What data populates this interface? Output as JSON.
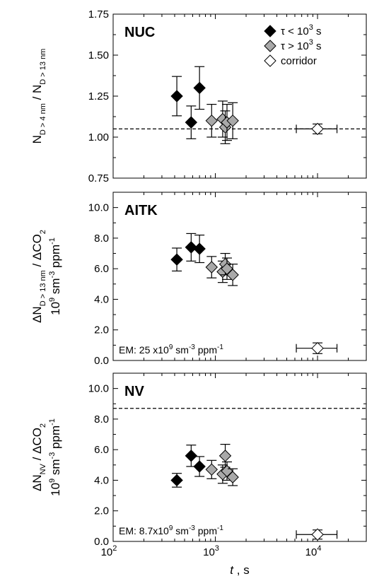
{
  "chart_data": [
    {
      "type": "scatter",
      "panel_label": "NUC",
      "ylabel": {
        "main1": "N",
        "sub1": "D > 4 nm",
        "main2": " / N",
        "sub2": "D > 13 nm"
      },
      "ylim": [
        0.75,
        1.75
      ],
      "yticks": [
        "0.75",
        "1.00",
        "1.25",
        "1.50",
        "1.75"
      ],
      "ytick_values": [
        0.75,
        1.0,
        1.25,
        1.5,
        1.75
      ],
      "reference_line": 1.05,
      "legend": {
        "position": "top-right",
        "entries": [
          {
            "key": "short",
            "label_prefix": "τ < 10",
            "label_sup": "3",
            "label_suffix": " s",
            "color": "#000000"
          },
          {
            "key": "long",
            "label_prefix": "τ > 10",
            "label_sup": "3",
            "label_suffix": " s",
            "color": "#a9a9a9"
          },
          {
            "key": "corridor",
            "label": "corridor",
            "color": "#ffffff"
          }
        ]
      },
      "series": [
        {
          "key": "short",
          "points": [
            {
              "x": 420,
              "y": 1.25,
              "yerr": 0.12
            },
            {
              "x": 580,
              "y": 1.09,
              "yerr": 0.1
            },
            {
              "x": 700,
              "y": 1.3,
              "yerr": 0.13
            }
          ]
        },
        {
          "key": "long",
          "points": [
            {
              "x": 920,
              "y": 1.1,
              "yerr": 0.1
            },
            {
              "x": 1180,
              "y": 1.11,
              "yerr": 0.11
            },
            {
              "x": 1250,
              "y": 1.06,
              "yerr": 0.1
            },
            {
              "x": 1300,
              "y": 1.09,
              "yerr": 0.11
            },
            {
              "x": 1480,
              "y": 1.1,
              "yerr": 0.11
            }
          ]
        },
        {
          "key": "corridor",
          "points": [
            {
              "x": 10000,
              "y": 1.05,
              "yerr": 0.03,
              "xerr_low": 6200,
              "xerr_high": 15500
            }
          ]
        }
      ]
    },
    {
      "type": "scatter",
      "panel_label": "AITK",
      "ylabel": {
        "line1_main1": "ΔN",
        "line1_sub1": "D > 13 nm",
        "line1_main2": " / ΔCO",
        "line1_sub2": "2",
        "line2_main1": "10",
        "line2_sup1": "9",
        "line2_main2": " sm",
        "line2_sup2": "-3",
        "line2_main3": " ppm",
        "line2_sup3": "-1"
      },
      "ylim": [
        0.0,
        11.0
      ],
      "yticks": [
        "0.0",
        "2.0",
        "4.0",
        "6.0",
        "8.0",
        "10.0"
      ],
      "ytick_values": [
        0,
        2,
        4,
        6,
        8,
        10
      ],
      "annotation": {
        "prefix": "EM: 25 x10",
        "sup1": "9",
        "mid": " sm",
        "sup2": "-3",
        "mid2": " ppm",
        "sup3": "-1"
      },
      "series": [
        {
          "key": "short",
          "points": [
            {
              "x": 420,
              "y": 6.6,
              "yerr": 0.75
            },
            {
              "x": 580,
              "y": 7.4,
              "yerr": 0.9
            },
            {
              "x": 700,
              "y": 7.3,
              "yerr": 0.9
            }
          ]
        },
        {
          "key": "long",
          "points": [
            {
              "x": 920,
              "y": 6.1,
              "yerr": 0.7
            },
            {
              "x": 1180,
              "y": 5.8,
              "yerr": 0.7
            },
            {
              "x": 1250,
              "y": 6.3,
              "yerr": 0.7
            },
            {
              "x": 1300,
              "y": 6.0,
              "yerr": 0.7
            },
            {
              "x": 1480,
              "y": 5.6,
              "yerr": 0.7
            }
          ]
        },
        {
          "key": "corridor",
          "points": [
            {
              "x": 10000,
              "y": 0.8,
              "yerr": 0.35,
              "xerr_low": 6200,
              "xerr_high": 15500
            }
          ]
        }
      ]
    },
    {
      "type": "scatter",
      "panel_label": "NV",
      "ylabel": {
        "line1_main1": "ΔN",
        "line1_sub1": "NV",
        "line1_main2": " / ΔCO",
        "line1_sub2": "2",
        "line2_main1": "10",
        "line2_sup1": "9",
        "line2_main2": " sm",
        "line2_sup2": "-3",
        "line2_main3": " ppm",
        "line2_sup3": "-1"
      },
      "ylim": [
        0.0,
        11.0
      ],
      "yticks": [
        "0.0",
        "2.0",
        "4.0",
        "6.0",
        "8.0",
        "10.0"
      ],
      "ytick_values": [
        0,
        2,
        4,
        6,
        8,
        10
      ],
      "reference_line": 8.7,
      "annotation": {
        "prefix": "EM: 8.7x10",
        "sup1": "9",
        "mid": " sm",
        "sup2": "-3",
        "mid2": " ppm",
        "sup3": "-1"
      },
      "series": [
        {
          "key": "short",
          "points": [
            {
              "x": 420,
              "y": 4.0,
              "yerr": 0.45
            },
            {
              "x": 580,
              "y": 5.6,
              "yerr": 0.7
            },
            {
              "x": 700,
              "y": 4.9,
              "yerr": 0.65
            }
          ]
        },
        {
          "key": "long",
          "points": [
            {
              "x": 920,
              "y": 4.7,
              "yerr": 0.6
            },
            {
              "x": 1180,
              "y": 4.4,
              "yerr": 0.6
            },
            {
              "x": 1250,
              "y": 5.6,
              "yerr": 0.75
            },
            {
              "x": 1300,
              "y": 4.6,
              "yerr": 0.6
            },
            {
              "x": 1480,
              "y": 4.2,
              "yerr": 0.55
            }
          ]
        },
        {
          "key": "corridor",
          "points": [
            {
              "x": 10000,
              "y": 0.45,
              "yerr": 0.3,
              "xerr_low": 6200,
              "xerr_high": 15500
            }
          ]
        }
      ]
    }
  ],
  "xaxis": {
    "scale": "log",
    "xlim": [
      100,
      30000
    ],
    "tick_values": [
      100,
      1000,
      10000
    ],
    "tick_base": "10",
    "tick_exps": [
      "2",
      "3",
      "4"
    ],
    "label_main": "t",
    "label_rest": " ,  s"
  },
  "series_colors": {
    "short": "#000000",
    "long": "#a9a9a9",
    "corridor": "#ffffff"
  }
}
